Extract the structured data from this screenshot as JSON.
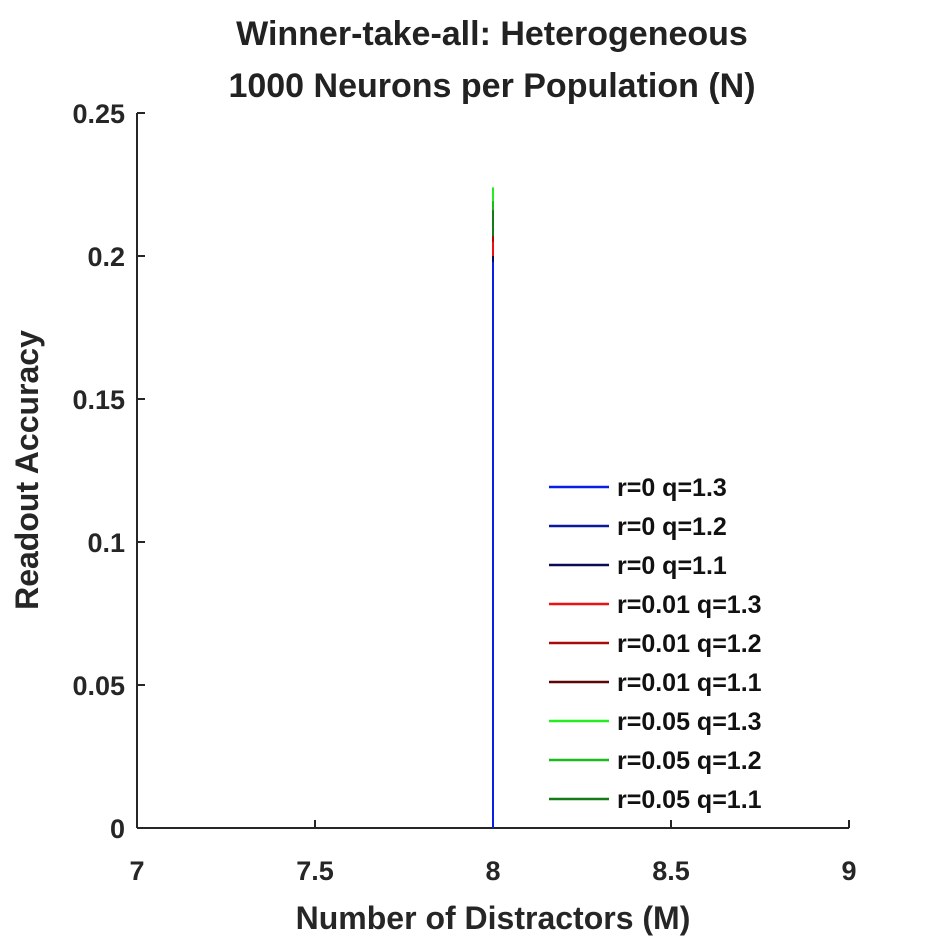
{
  "chart_data": {
    "type": "line",
    "title": "Winner-take-all: Heterogeneous",
    "subtitle": "1000 Neurons per Population (N)",
    "xlabel": "Number of Distractors (M)",
    "ylabel": "Readout Accuracy",
    "xlim": [
      7,
      9
    ],
    "ylim": [
      0,
      0.25
    ],
    "xticks": [
      7,
      7.5,
      8,
      8.5,
      9
    ],
    "xtick_labels": [
      "7",
      "7.5",
      "8",
      "8.5",
      "9"
    ],
    "yticks": [
      0,
      0.05,
      0.1,
      0.15,
      0.2,
      0.25
    ],
    "ytick_labels": [
      "0",
      "0.05",
      "0.1",
      "0.15",
      "0.2",
      "0.25"
    ],
    "grid": false,
    "legend_position": "bottom-right",
    "series": [
      {
        "name": "r=0 q=1.3",
        "color": "#0a1ee6",
        "x": [
          8,
          8
        ],
        "y": [
          0,
          0.198
        ]
      },
      {
        "name": "r=0 q=1.2",
        "color": "#0a1a9a",
        "x": [
          8,
          8
        ],
        "y": [
          0,
          0.2
        ]
      },
      {
        "name": "r=0 q=1.1",
        "color": "#0a0a55",
        "x": [
          8,
          8
        ],
        "y": [
          0,
          0.2
        ]
      },
      {
        "name": "r=0.01 q=1.3",
        "color": "#ee1111",
        "x": [
          8,
          8
        ],
        "y": [
          0,
          0.205
        ]
      },
      {
        "name": "r=0.01 q=1.2",
        "color": "#a80a0a",
        "x": [
          8,
          8
        ],
        "y": [
          0,
          0.207
        ]
      },
      {
        "name": "r=0.01 q=1.1",
        "color": "#5a0606",
        "x": [
          8,
          8
        ],
        "y": [
          0,
          0.219
        ]
      },
      {
        "name": "r=0.05 q=1.3",
        "color": "#22ee22",
        "x": [
          8,
          8
        ],
        "y": [
          0,
          0.224
        ]
      },
      {
        "name": "r=0.05 q=1.2",
        "color": "#1cbb1c",
        "x": [
          8,
          8
        ],
        "y": [
          0,
          0.219
        ]
      },
      {
        "name": "r=0.05 q=1.1",
        "color": "#157a15",
        "x": [
          8,
          8
        ],
        "y": [
          0,
          0.216
        ]
      }
    ]
  }
}
